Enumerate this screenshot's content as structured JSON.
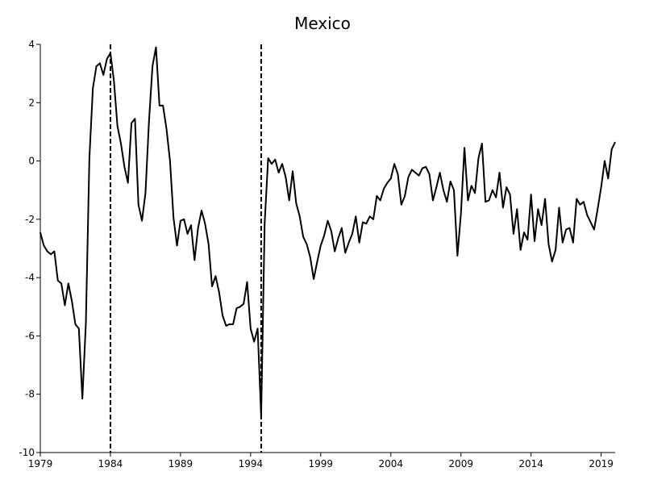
{
  "chart_data": {
    "type": "line",
    "title": "Mexico",
    "x": [
      1979,
      1979.25,
      1979.5,
      1979.75,
      1980,
      1980.25,
      1980.5,
      1980.75,
      1981,
      1981.25,
      1981.5,
      1981.75,
      1982,
      1982.25,
      1982.5,
      1982.75,
      1983,
      1983.25,
      1983.5,
      1983.75,
      1984,
      1984.25,
      1984.5,
      1984.75,
      1985,
      1985.25,
      1985.5,
      1985.75,
      1986,
      1986.25,
      1986.5,
      1986.75,
      1987,
      1987.25,
      1987.5,
      1987.75,
      1988,
      1988.25,
      1988.5,
      1988.75,
      1989,
      1989.25,
      1989.5,
      1989.75,
      1990,
      1990.25,
      1990.5,
      1990.75,
      1991,
      1991.25,
      1991.5,
      1991.75,
      1992,
      1992.25,
      1992.5,
      1992.75,
      1993,
      1993.25,
      1993.5,
      1993.75,
      1994,
      1994.25,
      1994.5,
      1994.75,
      1995,
      1995.25,
      1995.5,
      1995.75,
      1996,
      1996.25,
      1996.5,
      1996.75,
      1997,
      1997.25,
      1997.5,
      1997.75,
      1998,
      1998.25,
      1998.5,
      1998.75,
      1999,
      1999.25,
      1999.5,
      1999.75,
      2000,
      2000.25,
      2000.5,
      2000.75,
      2001,
      2001.25,
      2001.5,
      2001.75,
      2002,
      2002.25,
      2002.5,
      2002.75,
      2003,
      2003.25,
      2003.5,
      2003.75,
      2004,
      2004.25,
      2004.5,
      2004.75,
      2005,
      2005.25,
      2005.5,
      2005.75,
      2006,
      2006.25,
      2006.5,
      2006.75,
      2007,
      2007.25,
      2007.5,
      2007.75,
      2008,
      2008.25,
      2008.5,
      2008.75,
      2009,
      2009.25,
      2009.5,
      2009.75,
      2010,
      2010.25,
      2010.5,
      2010.75,
      2011,
      2011.25,
      2011.5,
      2011.75,
      2012,
      2012.25,
      2012.5,
      2012.75,
      2013,
      2013.25,
      2013.5,
      2013.75,
      2014,
      2014.25,
      2014.5,
      2014.75,
      2015,
      2015.25,
      2015.5,
      2015.75,
      2016,
      2016.25,
      2016.5,
      2016.75,
      2017,
      2017.25,
      2017.5,
      2017.75,
      2018,
      2018.25,
      2018.5,
      2018.75,
      2019,
      2019.25,
      2019.5,
      2019.75,
      2020
    ],
    "series": [
      {
        "color": "#000000",
        "values": [
          -2.45,
          -2.9,
          -3.1,
          -3.2,
          -3.1,
          -4.1,
          -4.2,
          -4.95,
          -4.2,
          -4.8,
          -5.6,
          -5.75,
          -8.15,
          -5.55,
          0.1,
          2.5,
          3.25,
          3.35,
          2.95,
          3.5,
          3.7,
          2.75,
          1.2,
          0.6,
          -0.2,
          -0.75,
          1.3,
          1.45,
          -1.5,
          -2.05,
          -1.1,
          1.35,
          3.25,
          3.9,
          1.9,
          1.9,
          1.1,
          0,
          -1.95,
          -2.9,
          -2.05,
          -2.0,
          -2.5,
          -2.2,
          -3.4,
          -2.3,
          -1.7,
          -2.15,
          -2.85,
          -4.3,
          -3.95,
          -4.5,
          -5.3,
          -5.65,
          -5.6,
          -5.6,
          -5.05,
          -5.0,
          -4.9,
          -4.15,
          -5.75,
          -6.2,
          -5.75,
          -8.75,
          -2.15,
          0.1,
          -0.1,
          0.05,
          -0.4,
          -0.1,
          -0.55,
          -1.35,
          -0.35,
          -1.45,
          -1.9,
          -2.6,
          -2.85,
          -3.3,
          -4.05,
          -3.45,
          -2.9,
          -2.55,
          -2.05,
          -2.4,
          -3.1,
          -2.65,
          -2.3,
          -3.15,
          -2.8,
          -2.5,
          -1.9,
          -2.8,
          -2.1,
          -2.15,
          -1.9,
          -2.0,
          -1.2,
          -1.35,
          -0.95,
          -0.75,
          -0.6,
          -0.1,
          -0.45,
          -1.5,
          -1.2,
          -0.55,
          -0.3,
          -0.4,
          -0.5,
          -0.25,
          -0.2,
          -0.45,
          -1.35,
          -0.9,
          -0.4,
          -1.0,
          -1.4,
          -0.7,
          -1.0,
          -3.25,
          -1.8,
          0.45,
          -1.35,
          -0.85,
          -1.1,
          0.1,
          0.6,
          -1.4,
          -1.35,
          -1.0,
          -1.25,
          -0.4,
          -1.6,
          -0.9,
          -1.15,
          -2.5,
          -1.65,
          -3.05,
          -2.45,
          -2.7,
          -1.15,
          -2.75,
          -1.65,
          -2.2,
          -1.3,
          -2.85,
          -3.45,
          -3.05,
          -1.6,
          -2.8,
          -2.35,
          -2.3,
          -2.8,
          -1.3,
          -1.5,
          -1.4,
          -1.85,
          -2.1,
          -2.35,
          -1.65,
          -0.9,
          0.0,
          -0.6,
          0.4,
          0.65
        ]
      }
    ],
    "vlines": [
      1984,
      1994.75
    ],
    "xlim": [
      1979,
      2020
    ],
    "xticks": [
      1979,
      1984,
      1989,
      1994,
      1999,
      2004,
      2009,
      2014,
      2019
    ],
    "ylim": [
      -10,
      4
    ],
    "yticks": [
      -10,
      -8,
      -6,
      -4,
      -2,
      0,
      2,
      4
    ]
  }
}
